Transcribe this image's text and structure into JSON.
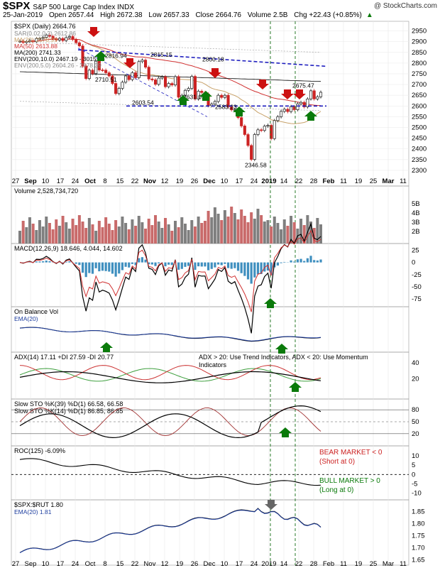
{
  "header": {
    "symbol": "$SPX",
    "name": "S&P 500 Large Cap Index INDX",
    "date": "25-Jan-2019",
    "open": "Open 2657.44",
    "high": "High 2672.38",
    "low": "Low 2657.33",
    "close": "Close 2664.76",
    "volume": "Volume 2.5B",
    "chg": "Chg +22.43 (+0.85%)",
    "chg_arrow": "▲",
    "credit": "@ StockCharts.com"
  },
  "colors": {
    "up": "#1a1a1a",
    "down": "#cc2222",
    "volume_up": "#7f7f7f",
    "volume_down": "#c96a6a",
    "ma20": "#c8a26a",
    "ma50": "#d03030",
    "ma200": "#000000",
    "env": "#a8a8a8",
    "hline": "#1f1fbf",
    "arrow_up": "#0a7a0a",
    "arrow_down": "#cc1111",
    "macd_hist": "#3f8fbf",
    "macd_signal": "#d03030",
    "ema": "#1f3fa0",
    "di_plus": "#3fa03f",
    "di_minus": "#cc3333",
    "vline": "#2a7a2a"
  },
  "chart_data": [
    {
      "panel": "price",
      "type": "candlestick",
      "title": "$SPX (Daily) 2664.76",
      "legend": [
        "SAR(0.02,0.2) 2612.86",
        "MA(20) 2578.99",
        "MA(50) 2613.88",
        "MA(200) 2741.33",
        "ENV(200,10.0) 2467.19 - 3015.46",
        "ENV(200,5.0) 2604.26 - 2878.39"
      ],
      "y_ticks": [
        2300,
        2350,
        2400,
        2450,
        2500,
        2550,
        2600,
        2650,
        2700,
        2750,
        2800,
        2850,
        2900,
        2950
      ],
      "ylim": [
        2280,
        2975
      ],
      "x_labels": [
        "27",
        "Sep",
        "10",
        "17",
        "24",
        "Oct",
        "8",
        "15",
        "22",
        "Nov",
        "12",
        "19",
        "26",
        "Dec",
        "10",
        "17",
        "24",
        "2019",
        "14",
        "22",
        "28",
        "Feb",
        "11",
        "19",
        "25",
        "Mar",
        "11"
      ],
      "annotations": [
        "2816.94",
        "2815.15",
        "2800.18",
        "2710.51",
        "2603.54",
        "2631.09",
        "2583.23",
        "2346.58",
        "2675.47"
      ],
      "series": [
        {
          "name": "$SPX",
          "close": [
            2902,
            2896,
            2901,
            2905,
            2900,
            2914,
            2915,
            2920,
            2930,
            2925,
            2914,
            2907,
            2915,
            2905,
            2919,
            2924,
            2910,
            2895,
            2880,
            2786,
            2728,
            2767,
            2751,
            2809,
            2768,
            2767,
            2755,
            2740,
            2705,
            2658,
            2682,
            2711,
            2740,
            2723,
            2755,
            2732,
            2807,
            2814,
            2781,
            2726,
            2722,
            2701,
            2730,
            2736,
            2690,
            2705,
            2698,
            2737,
            2641,
            2650,
            2673,
            2682,
            2738,
            2633,
            2669,
            2663,
            2656,
            2602,
            2609,
            2621,
            2650,
            2640,
            2650,
            2596,
            2582,
            2583,
            2546,
            2507,
            2467,
            2416,
            2351,
            2467,
            2489,
            2486,
            2506,
            2510,
            2448,
            2532,
            2550,
            2575,
            2585,
            2574,
            2597,
            2583,
            2610,
            2617,
            2596,
            2633,
            2671,
            2633,
            2643,
            2664
          ]
        }
      ]
    },
    {
      "panel": "volume",
      "type": "bar",
      "title": "Volume 2,528,734,720",
      "y_ticks": [
        "2B",
        "3B",
        "4B",
        "5B"
      ]
    },
    {
      "panel": "macd",
      "type": "line",
      "title": "MACD(12,26,9) 18.646, 4.044, 14.602",
      "y_ticks": [
        -75,
        -50,
        -25,
        0,
        25
      ],
      "ylim": [
        -85,
        30
      ]
    },
    {
      "panel": "obv",
      "type": "line",
      "title": "On Balance Vol",
      "legend": [
        "EMA(20)"
      ]
    },
    {
      "panel": "adx",
      "type": "line",
      "title": "ADX(14) 17.11 +DI 27.59 -DI 20.77",
      "y_ticks": [
        20,
        40
      ],
      "annotations": [
        "ADX > 20: Use Trend Indicators, ADX < 20: Use Momentum",
        "Indicators"
      ]
    },
    {
      "panel": "stoch",
      "type": "line",
      "title": "Slow STO %K(39) %D(1) 66.58, 66.58",
      "legend": [
        "Slow STO %K(14) %D(1) 86.85, 86.85"
      ],
      "y_ticks": [
        20,
        50,
        80
      ]
    },
    {
      "panel": "roc",
      "type": "line",
      "title": "ROC(125) -6.09%",
      "y_ticks": [
        -10,
        -5,
        0,
        5,
        10
      ],
      "ylim": [
        -12,
        13
      ],
      "annotations": [
        "BEAR MARKET < 0",
        "(Short at 0)",
        "BULL MARKET > 0",
        "(Long at 0)"
      ]
    },
    {
      "panel": "ratio",
      "type": "line",
      "title": "$SPX:$RUT 1.80",
      "legend": [
        "EMA(20) 1.81"
      ],
      "y_ticks": [
        1.65,
        1.7,
        1.75,
        1.8,
        1.85
      ],
      "ylim": [
        1.64,
        1.88
      ]
    }
  ]
}
